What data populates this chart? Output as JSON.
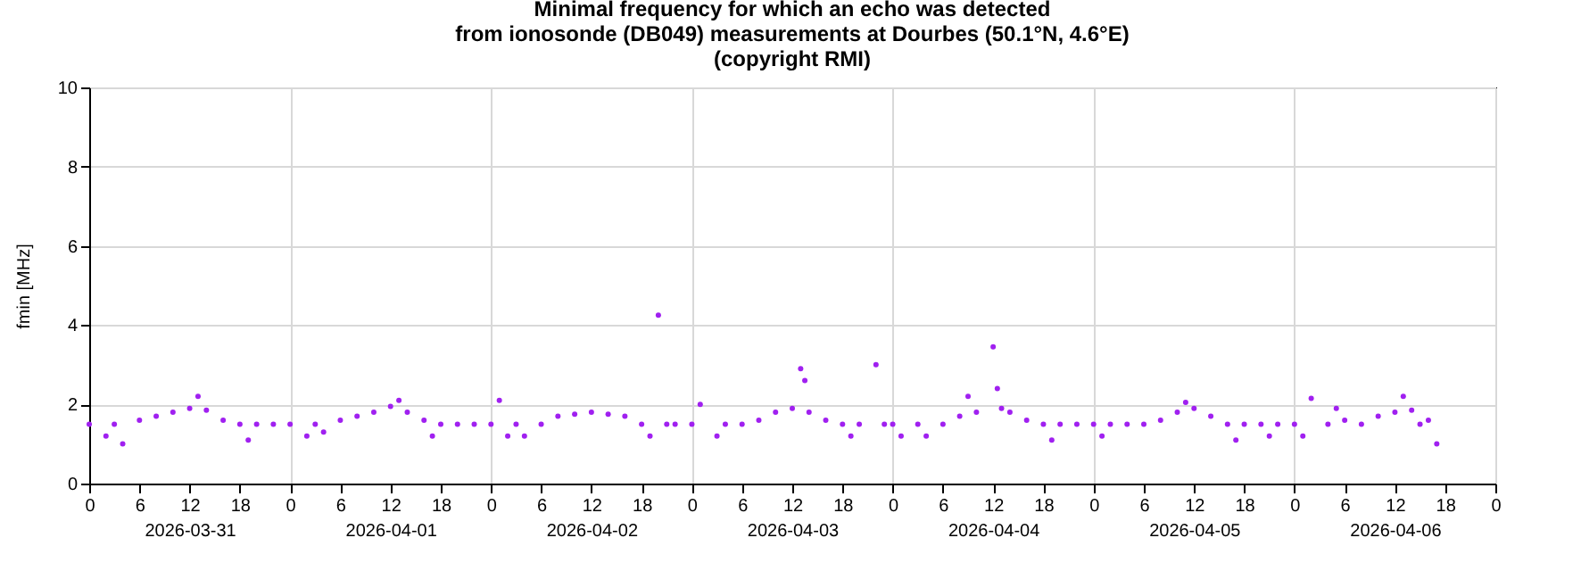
{
  "chart_data": {
    "type": "scatter",
    "title": "Minimal frequency for which an echo was detected\nfrom ionosonde (DB049) measurements at Dourbes (50.1°N, 4.6°E)\n(copyright RMI)",
    "ylabel": "fmin [MHz]",
    "xlim": [
      "2026-03-31T00:00",
      "2026-04-07T00:00"
    ],
    "xticks": [
      {
        "value": "2026-03-31T00:00",
        "label": "0"
      },
      {
        "value": "2026-03-31T06:00",
        "label": "6"
      },
      {
        "value": "2026-03-31T12:00",
        "label": "12\n2026-03-31"
      },
      {
        "value": "2026-03-31T18:00",
        "label": "18"
      },
      {
        "value": "2026-04-01T00:00",
        "label": "0"
      },
      {
        "value": "2026-04-01T06:00",
        "label": "6"
      },
      {
        "value": "2026-04-01T12:00",
        "label": "12\n2026-04-01"
      },
      {
        "value": "2026-04-01T18:00",
        "label": "18"
      },
      {
        "value": "2026-04-02T00:00",
        "label": "0"
      },
      {
        "value": "2026-04-02T06:00",
        "label": "6"
      },
      {
        "value": "2026-04-02T12:00",
        "label": "12\n2026-04-02"
      },
      {
        "value": "2026-04-02T18:00",
        "label": "18"
      },
      {
        "value": "2026-04-03T00:00",
        "label": "0"
      },
      {
        "value": "2026-04-03T06:00",
        "label": "6"
      },
      {
        "value": "2026-04-03T12:00",
        "label": "12\n2026-04-03"
      },
      {
        "value": "2026-04-03T18:00",
        "label": "18"
      },
      {
        "value": "2026-04-04T00:00",
        "label": "0"
      },
      {
        "value": "2026-04-04T06:00",
        "label": "6"
      },
      {
        "value": "2026-04-04T12:00",
        "label": "12\n2026-04-04"
      },
      {
        "value": "2026-04-04T18:00",
        "label": "18"
      },
      {
        "value": "2026-04-05T00:00",
        "label": "0"
      },
      {
        "value": "2026-04-05T06:00",
        "label": "6"
      },
      {
        "value": "2026-04-05T12:00",
        "label": "12\n2026-04-05"
      },
      {
        "value": "2026-04-05T18:00",
        "label": "18"
      },
      {
        "value": "2026-04-06T00:00",
        "label": "0"
      },
      {
        "value": "2026-04-06T06:00",
        "label": "6"
      },
      {
        "value": "2026-04-06T12:00",
        "label": "12\n2026-04-06"
      },
      {
        "value": "2026-04-06T18:00",
        "label": "18"
      },
      {
        "value": "2026-04-07T00:00",
        "label": "0"
      }
    ],
    "ylim": [
      0,
      10
    ],
    "yticks": [
      0,
      2,
      4,
      6,
      8,
      10
    ],
    "grid": true,
    "marker": "circle",
    "legend": false,
    "series": [
      {
        "color": "#a020f0",
        "x": [
          "2026-03-31T00:00",
          "2026-03-31T02:00",
          "2026-03-31T03:00",
          "2026-03-31T04:00",
          "2026-03-31T06:00",
          "2026-03-31T08:00",
          "2026-03-31T10:00",
          "2026-03-31T12:00",
          "2026-03-31T13:00",
          "2026-03-31T14:00",
          "2026-03-31T16:00",
          "2026-03-31T18:00",
          "2026-03-31T19:00",
          "2026-03-31T20:00",
          "2026-03-31T22:00",
          "2026-04-01T00:00",
          "2026-04-01T02:00",
          "2026-04-01T03:00",
          "2026-04-01T04:00",
          "2026-04-01T06:00",
          "2026-04-01T08:00",
          "2026-04-01T10:00",
          "2026-04-01T12:00",
          "2026-04-01T13:00",
          "2026-04-01T14:00",
          "2026-04-01T16:00",
          "2026-04-01T17:00",
          "2026-04-01T18:00",
          "2026-04-01T20:00",
          "2026-04-01T22:00",
          "2026-04-02T00:00",
          "2026-04-02T01:00",
          "2026-04-02T02:00",
          "2026-04-02T03:00",
          "2026-04-02T04:00",
          "2026-04-02T06:00",
          "2026-04-02T08:00",
          "2026-04-02T10:00",
          "2026-04-02T12:00",
          "2026-04-02T14:00",
          "2026-04-02T16:00",
          "2026-04-02T18:00",
          "2026-04-02T19:00",
          "2026-04-02T20:00",
          "2026-04-02T21:00",
          "2026-04-02T22:00",
          "2026-04-03T00:00",
          "2026-04-03T01:00",
          "2026-04-03T03:00",
          "2026-04-03T04:00",
          "2026-04-03T06:00",
          "2026-04-03T08:00",
          "2026-04-03T10:00",
          "2026-04-03T12:00",
          "2026-04-03T13:00",
          "2026-04-03T13:30",
          "2026-04-03T14:00",
          "2026-04-03T16:00",
          "2026-04-03T18:00",
          "2026-04-03T19:00",
          "2026-04-03T20:00",
          "2026-04-03T22:00",
          "2026-04-03T23:00",
          "2026-04-04T00:00",
          "2026-04-04T01:00",
          "2026-04-04T03:00",
          "2026-04-04T04:00",
          "2026-04-04T06:00",
          "2026-04-04T08:00",
          "2026-04-04T09:00",
          "2026-04-04T10:00",
          "2026-04-04T12:00",
          "2026-04-04T12:30",
          "2026-04-04T13:00",
          "2026-04-04T14:00",
          "2026-04-04T16:00",
          "2026-04-04T18:00",
          "2026-04-04T19:00",
          "2026-04-04T20:00",
          "2026-04-04T22:00",
          "2026-04-05T00:00",
          "2026-04-05T01:00",
          "2026-04-05T02:00",
          "2026-04-05T04:00",
          "2026-04-05T06:00",
          "2026-04-05T08:00",
          "2026-04-05T10:00",
          "2026-04-05T11:00",
          "2026-04-05T12:00",
          "2026-04-05T14:00",
          "2026-04-05T16:00",
          "2026-04-05T17:00",
          "2026-04-05T18:00",
          "2026-04-05T20:00",
          "2026-04-05T21:00",
          "2026-04-05T22:00",
          "2026-04-06T00:00",
          "2026-04-06T01:00",
          "2026-04-06T02:00",
          "2026-04-06T04:00",
          "2026-04-06T05:00",
          "2026-04-06T06:00",
          "2026-04-06T08:00",
          "2026-04-06T10:00",
          "2026-04-06T12:00",
          "2026-04-06T13:00",
          "2026-04-06T14:00",
          "2026-04-06T15:00",
          "2026-04-06T16:00",
          "2026-04-06T17:00"
        ],
        "values": [
          1.5,
          1.2,
          1.5,
          1.0,
          1.6,
          1.7,
          1.8,
          1.9,
          2.2,
          1.85,
          1.6,
          1.5,
          1.1,
          1.5,
          1.5,
          1.5,
          1.2,
          1.5,
          1.3,
          1.6,
          1.7,
          1.8,
          1.95,
          2.1,
          1.8,
          1.6,
          1.2,
          1.5,
          1.5,
          1.5,
          1.5,
          2.1,
          1.2,
          1.5,
          1.2,
          1.5,
          1.7,
          1.75,
          1.8,
          1.75,
          1.7,
          1.5,
          1.2,
          4.25,
          1.5,
          1.5,
          1.5,
          2.0,
          1.2,
          1.5,
          1.5,
          1.6,
          1.8,
          1.9,
          2.9,
          2.6,
          1.8,
          1.6,
          1.5,
          1.2,
          1.5,
          3.0,
          1.5,
          1.5,
          1.2,
          1.5,
          1.2,
          1.5,
          1.7,
          2.2,
          1.8,
          3.45,
          2.4,
          1.9,
          1.8,
          1.6,
          1.5,
          1.1,
          1.5,
          1.5,
          1.5,
          1.2,
          1.5,
          1.5,
          1.5,
          1.6,
          1.8,
          2.05,
          1.9,
          1.7,
          1.5,
          1.1,
          1.5,
          1.5,
          1.2,
          1.5,
          1.5,
          1.2,
          2.15,
          1.5,
          1.9,
          1.6,
          1.5,
          1.7,
          1.8,
          2.2,
          1.85,
          1.5,
          1.6,
          1.0
        ]
      }
    ]
  }
}
